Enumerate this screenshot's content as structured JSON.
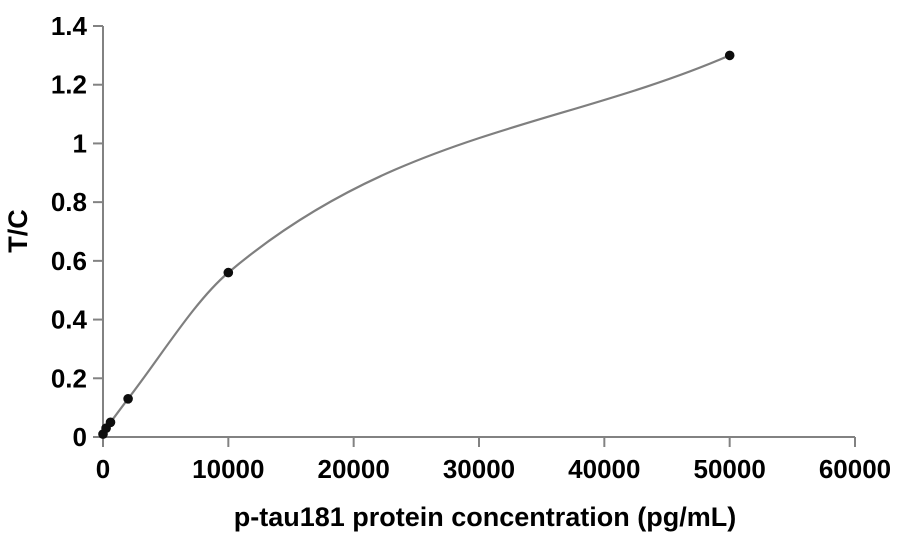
{
  "figure": {
    "background": "#ffffff",
    "axis_color": "#828282",
    "curve_color": "#7f7f7f",
    "marker_color": "#0d0d0d",
    "text_color": "#000000"
  },
  "chart_data": {
    "type": "scatter",
    "title": "",
    "xlabel": "p-tau181 protein concentration (pg/mL)",
    "ylabel": "T/C",
    "xlim": [
      0,
      60000
    ],
    "ylim": [
      0,
      1.4
    ],
    "x_ticks": [
      0,
      10000,
      20000,
      30000,
      40000,
      50000,
      60000
    ],
    "x_tick_labels": [
      "0",
      "10000",
      "20000",
      "30000",
      "40000",
      "50000",
      "60000"
    ],
    "y_ticks": [
      0,
      0.2,
      0.4,
      0.6,
      0.8,
      1.0,
      1.2,
      1.4
    ],
    "y_tick_labels": [
      "0",
      "0.2",
      "0.4",
      "0.6",
      "0.8",
      "1",
      "1.2",
      "1.4"
    ],
    "grid": false,
    "legend": null,
    "line": {
      "smoothing": "monotone-cubic"
    },
    "points": [
      {
        "x": 0,
        "y": 0.01
      },
      {
        "x": 250,
        "y": 0.03
      },
      {
        "x": 600,
        "y": 0.05
      },
      {
        "x": 2000,
        "y": 0.13
      },
      {
        "x": 10000,
        "y": 0.56
      },
      {
        "x": 50000,
        "y": 1.3
      }
    ]
  }
}
